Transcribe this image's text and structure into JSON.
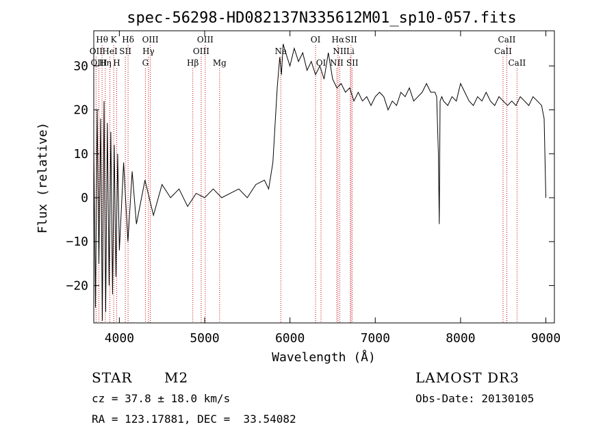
{
  "chart_data": {
    "type": "line",
    "title": "spec-56298-HD082137N335612M01_sp10-057.fits",
    "xlabel": "Wavelength (Å)",
    "ylabel": "Flux (relative)",
    "xlim": [
      3700,
      9100
    ],
    "ylim": [
      -28.5,
      38
    ],
    "xticks": [
      4000,
      5000,
      6000,
      7000,
      8000,
      9000
    ],
    "yticks": [
      -20,
      -10,
      0,
      10,
      20,
      30
    ],
    "series": [
      {
        "name": "flux",
        "x": [
          3700,
          3720,
          3740,
          3760,
          3780,
          3800,
          3820,
          3840,
          3860,
          3880,
          3900,
          3920,
          3940,
          3960,
          3980,
          4000,
          4050,
          4100,
          4150,
          4200,
          4300,
          4400,
          4500,
          4600,
          4700,
          4800,
          4900,
          5000,
          5100,
          5200,
          5300,
          5400,
          5500,
          5600,
          5700,
          5750,
          5800,
          5850,
          5880,
          5900,
          5920,
          5950,
          6000,
          6050,
          6100,
          6150,
          6200,
          6250,
          6300,
          6350,
          6400,
          6450,
          6500,
          6550,
          6600,
          6650,
          6700,
          6750,
          6800,
          6850,
          6900,
          6950,
          7000,
          7050,
          7100,
          7150,
          7200,
          7250,
          7300,
          7350,
          7400,
          7450,
          7500,
          7550,
          7600,
          7650,
          7700,
          7720,
          7740,
          7750,
          7760,
          7780,
          7800,
          7850,
          7900,
          7950,
          8000,
          8050,
          8100,
          8150,
          8200,
          8250,
          8300,
          8350,
          8400,
          8450,
          8500,
          8550,
          8600,
          8650,
          8700,
          8750,
          8800,
          8850,
          8900,
          8950,
          8980,
          9000
        ],
        "y": [
          12,
          -25,
          20,
          -15,
          18,
          -28,
          22,
          -26,
          17,
          -20,
          15,
          -22,
          12,
          -18,
          10,
          -12,
          8,
          -10,
          6,
          -6,
          4,
          -4,
          3,
          0,
          2,
          -2,
          1,
          0,
          2,
          0,
          1,
          2,
          0,
          3,
          4,
          2,
          8,
          25,
          32,
          28,
          35,
          33,
          30,
          34,
          31,
          33,
          29,
          31,
          28,
          30,
          27,
          33,
          27,
          25,
          26,
          24,
          25,
          22,
          24,
          22,
          23,
          21,
          23,
          24,
          23,
          20,
          22,
          21,
          24,
          23,
          25,
          22,
          23,
          24,
          26,
          24,
          24,
          23,
          10,
          -6,
          22,
          23,
          22,
          21,
          23,
          22,
          26,
          24,
          22,
          21,
          23,
          22,
          24,
          22,
          21,
          23,
          22,
          21,
          22,
          21,
          23,
          22,
          21,
          23,
          22,
          21,
          18,
          0
        ]
      }
    ],
    "lines": [
      {
        "label": "Hθ",
        "row": 0,
        "x": 3797
      },
      {
        "label": "OII",
        "row": 1,
        "x": 3727
      },
      {
        "label": "OIII",
        "row": 2,
        "x": 3760
      },
      {
        "label": "K",
        "row": 0,
        "x": 3934
      },
      {
        "label": "HeI",
        "row": 1,
        "x": 3889
      },
      {
        "label": "Hη",
        "row": 2,
        "x": 3835
      },
      {
        "label": "Hδ",
        "row": 0,
        "x": 4102
      },
      {
        "label": "SII",
        "row": 1,
        "x": 4070
      },
      {
        "label": "H",
        "row": 2,
        "x": 3969
      },
      {
        "label": "OIII",
        "row": 0,
        "x": 4363
      },
      {
        "label": "Hγ",
        "row": 1,
        "x": 4341
      },
      {
        "label": "G",
        "row": 2,
        "x": 4305
      },
      {
        "label": "OIII",
        "row": 0,
        "x": 5007
      },
      {
        "label": "OIII",
        "row": 1,
        "x": 4959
      },
      {
        "label": "Hβ",
        "row": 2,
        "x": 4861
      },
      {
        "label": "Mg",
        "row": 2,
        "x": 5175
      },
      {
        "label": "Na",
        "row": 1,
        "x": 5893
      },
      {
        "label": "OI",
        "row": 0,
        "x": 6300
      },
      {
        "label": "OI",
        "row": 2,
        "x": 6364
      },
      {
        "label": "Hα",
        "row": 0,
        "x": 6563
      },
      {
        "label": "SII",
        "row": 0,
        "x": 6716
      },
      {
        "label": "NII",
        "row": 1,
        "x": 6583
      },
      {
        "label": "Li",
        "row": 1,
        "x": 6708
      },
      {
        "label": "NII",
        "row": 2,
        "x": 6548
      },
      {
        "label": "SII",
        "row": 2,
        "x": 6731
      },
      {
        "label": "CaII",
        "row": 0,
        "x": 8542
      },
      {
        "label": "CaII",
        "row": 1,
        "x": 8498
      },
      {
        "label": "CaII",
        "row": 2,
        "x": 8662
      }
    ]
  },
  "info": {
    "class": "STAR",
    "subclass": "M2",
    "survey": "LAMOST DR3",
    "cz": "cz = 37.8 ± 18.0 km/s",
    "obs_date": "Obs-Date: 20130105",
    "coords": "RA = 123.17881, DEC =  33.54082"
  }
}
